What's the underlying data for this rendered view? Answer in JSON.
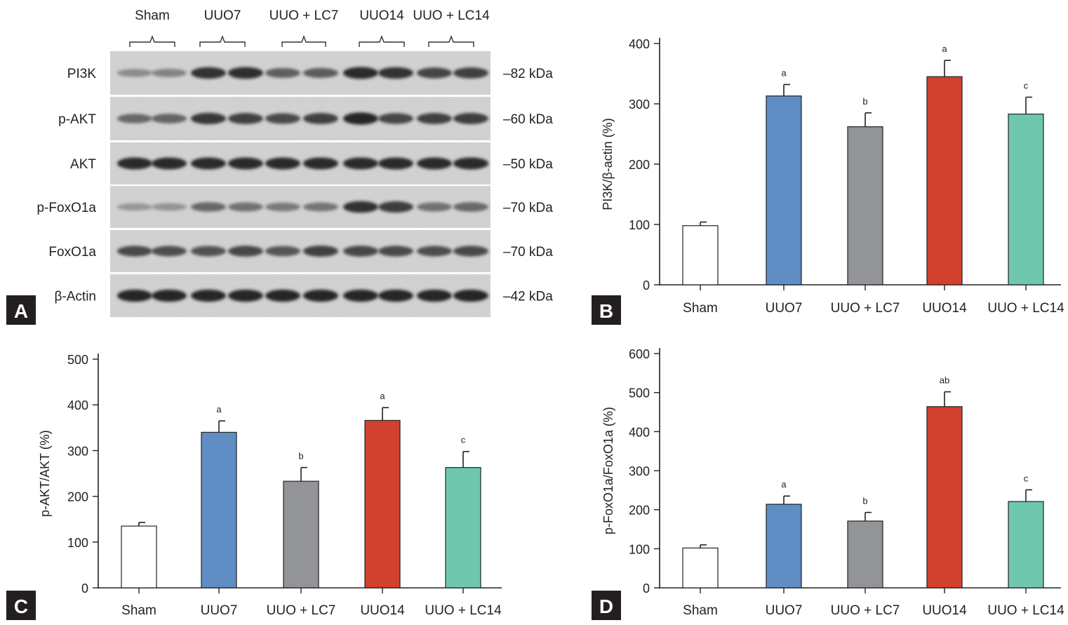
{
  "panel_a": {
    "letter": "A",
    "groups": [
      "Sham",
      "UUO7",
      "UUO + LC7",
      "UUO14",
      "UUO + LC14"
    ],
    "rows": [
      {
        "protein": "PI3K",
        "kda": "–82 kDa",
        "intensity": [
          0.35,
          0.4,
          0.85,
          0.88,
          0.6,
          0.62,
          0.9,
          0.85,
          0.75,
          0.78
        ]
      },
      {
        "protein": "p-AKT",
        "kda": "–60 kDa",
        "intensity": [
          0.55,
          0.58,
          0.82,
          0.78,
          0.72,
          0.78,
          0.92,
          0.74,
          0.78,
          0.8
        ]
      },
      {
        "protein": "AKT",
        "kda": "–50 kDa",
        "intensity": [
          0.9,
          0.9,
          0.9,
          0.9,
          0.9,
          0.9,
          0.9,
          0.9,
          0.9,
          0.9
        ]
      },
      {
        "protein": "p-FoxO1a",
        "kda": "–70 kDa",
        "intensity": [
          0.28,
          0.3,
          0.55,
          0.5,
          0.45,
          0.48,
          0.85,
          0.8,
          0.5,
          0.55
        ]
      },
      {
        "protein": "FoxO1a",
        "kda": "–70 kDa",
        "intensity": [
          0.72,
          0.7,
          0.68,
          0.74,
          0.66,
          0.78,
          0.74,
          0.72,
          0.7,
          0.72
        ]
      },
      {
        "protein": "β-Actin",
        "kda": "–42 kDa",
        "intensity": [
          0.92,
          0.92,
          0.92,
          0.92,
          0.92,
          0.92,
          0.92,
          0.92,
          0.92,
          0.92
        ]
      }
    ]
  },
  "chart_data": [
    {
      "type": "bar",
      "letter": "B",
      "categories": [
        "Sham",
        "UUO7",
        "UUO + LC7",
        "UUO14",
        "UUO + LC14"
      ],
      "values": [
        98,
        313,
        262,
        345,
        283
      ],
      "errors": [
        6,
        19,
        23,
        27,
        28
      ],
      "annotations": [
        "",
        "a",
        "b",
        "a",
        "c"
      ],
      "colors": [
        "#ffffff",
        "#5f8dc4",
        "#929497",
        "#d2402e",
        "#6fc8ad"
      ],
      "ylabel": "PI3K/β-actin (%)",
      "ylim": [
        0,
        400
      ],
      "yticks": [
        0,
        100,
        200,
        300,
        400
      ]
    },
    {
      "type": "bar",
      "letter": "C",
      "categories": [
        "Sham",
        "UUO7",
        "UUO + LC7",
        "UUO14",
        "UUO + LC14"
      ],
      "values": [
        135,
        340,
        233,
        366,
        263
      ],
      "errors": [
        8,
        25,
        30,
        28,
        35
      ],
      "annotations": [
        "",
        "a",
        "b",
        "a",
        "c"
      ],
      "colors": [
        "#ffffff",
        "#5f8dc4",
        "#929497",
        "#d2402e",
        "#6fc8ad"
      ],
      "ylabel": "p-AKT/AKT (%)",
      "ylim": [
        0,
        500
      ],
      "yticks": [
        0,
        100,
        200,
        300,
        400,
        500
      ]
    },
    {
      "type": "bar",
      "letter": "D",
      "categories": [
        "Sham",
        "UUO7",
        "UUO + LC7",
        "UUO14",
        "UUO + LC14"
      ],
      "values": [
        102,
        214,
        171,
        464,
        221
      ],
      "errors": [
        8,
        21,
        22,
        38,
        30
      ],
      "annotations": [
        "",
        "a",
        "b",
        "ab",
        "c"
      ],
      "colors": [
        "#ffffff",
        "#5f8dc4",
        "#929497",
        "#d2402e",
        "#6fc8ad"
      ],
      "ylabel": "p-FoxO1a/FoxO1a (%)",
      "ylim": [
        0,
        600
      ],
      "yticks": [
        0,
        100,
        200,
        300,
        400,
        500,
        600
      ]
    }
  ]
}
